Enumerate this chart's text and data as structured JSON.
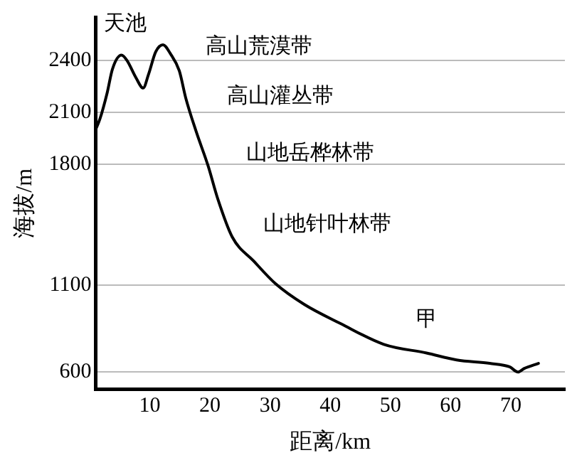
{
  "chart_data": {
    "type": "line",
    "xlabel": "距离/km",
    "ylabel": "海拔/m",
    "xlim": [
      1,
      79
    ],
    "xticks": [
      10,
      20,
      30,
      40,
      50,
      60,
      70
    ],
    "ylim": [
      500,
      2650
    ],
    "yticks": [
      600,
      1100,
      1800,
      2100,
      2400
    ],
    "grid": "y",
    "marker": "none",
    "line_style": "solid",
    "series": [
      {
        "color": "#000000",
        "x": [
          1,
          1.7,
          2.9,
          3.8,
          5.3,
          6.2,
          7.7,
          8.9,
          9.8,
          11,
          12.2,
          13.4,
          14.9,
          16,
          17.7,
          19.7,
          21.3,
          23.7,
          27.3,
          30.9,
          35.7,
          41.7,
          48.9,
          56,
          61,
          66.5,
          69.8,
          71.2,
          72.2,
          74.6
        ],
        "values": [
          2000,
          2060,
          2210,
          2350,
          2430,
          2400,
          2300,
          2240,
          2320,
          2450,
          2490,
          2440,
          2340,
          2180,
          1990,
          1790,
          1600,
          1380,
          1240,
          1110,
          990,
          880,
          760,
          710,
          670,
          650,
          630,
          600,
          620,
          650
        ]
      }
    ],
    "annotations": [
      "天池",
      "高山荒漠带",
      "高山灌丛带",
      "山地岳桦林带",
      "山地针叶林带",
      "甲"
    ]
  }
}
